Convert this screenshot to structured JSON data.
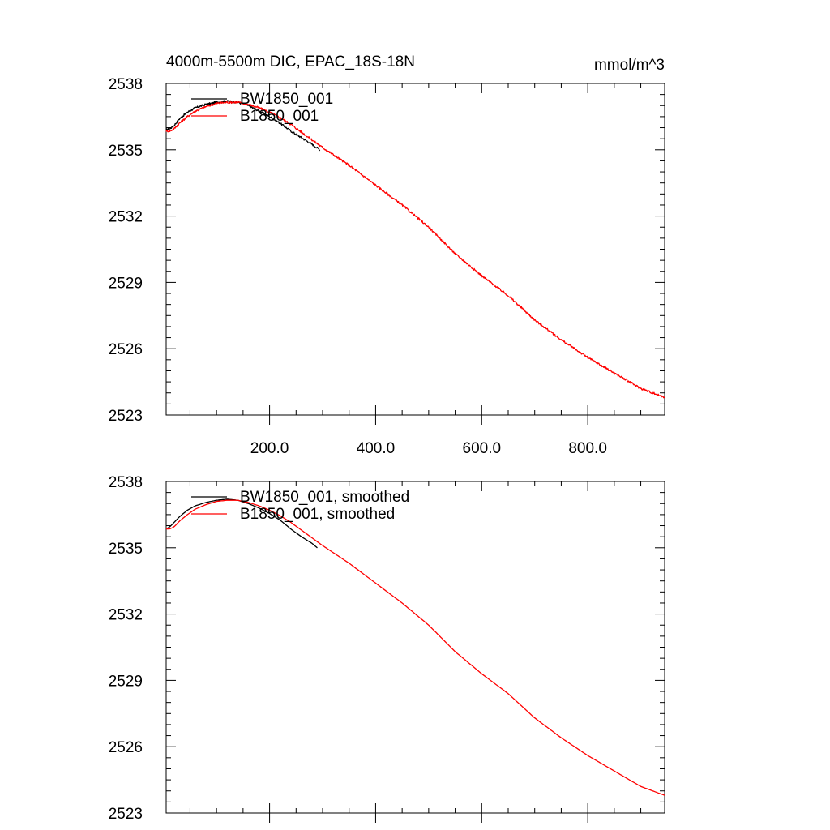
{
  "figure": {
    "title": "4000m-5500m DIC, EPAC_18S-18N",
    "units": "mmol/m^3"
  },
  "chart_data": [
    {
      "type": "line",
      "title": "4000m-5500m DIC, EPAC_18S-18N",
      "units_label": "mmol/m^3",
      "xlim": [
        5,
        945
      ],
      "ylim": [
        2523,
        2538
      ],
      "x_ticks": [
        200,
        400,
        600,
        800
      ],
      "x_tick_labels": [
        "200.0",
        "400.0",
        "600.0",
        "800.0"
      ],
      "y_ticks": [
        2523,
        2526,
        2529,
        2532,
        2535,
        2538
      ],
      "y_tick_labels": [
        "2523",
        "2526",
        "2529",
        "2532",
        "2535",
        "2538"
      ],
      "legend_position": "top-left",
      "noisy": true,
      "series": [
        {
          "name": "BW1850_001",
          "color": "#000000",
          "x": [
            5,
            12,
            20,
            30,
            45,
            60,
            80,
            100,
            120,
            140,
            160,
            180,
            200,
            220,
            240,
            260,
            280,
            295
          ],
          "y": [
            2535.9,
            2535.95,
            2536.1,
            2536.4,
            2536.7,
            2536.9,
            2537.05,
            2537.15,
            2537.2,
            2537.15,
            2537.0,
            2536.75,
            2536.5,
            2536.2,
            2535.85,
            2535.55,
            2535.25,
            2535.0
          ]
        },
        {
          "name": "B1850_001",
          "color": "#ff0000",
          "x": [
            5,
            12,
            20,
            30,
            45,
            60,
            80,
            100,
            120,
            140,
            160,
            180,
            200,
            220,
            240,
            260,
            280,
            300,
            350,
            400,
            450,
            500,
            550,
            600,
            650,
            700,
            750,
            800,
            850,
            900,
            945
          ],
          "y": [
            2535.85,
            2535.85,
            2535.95,
            2536.2,
            2536.5,
            2536.75,
            2536.95,
            2537.1,
            2537.15,
            2537.15,
            2537.05,
            2536.9,
            2536.7,
            2536.45,
            2536.15,
            2535.8,
            2535.45,
            2535.1,
            2534.3,
            2533.4,
            2532.5,
            2531.5,
            2530.3,
            2529.3,
            2528.4,
            2527.3,
            2526.4,
            2525.6,
            2524.9,
            2524.2,
            2523.8
          ]
        }
      ]
    },
    {
      "type": "line",
      "title": "",
      "units_label": "",
      "xlim": [
        5,
        945
      ],
      "ylim": [
        2523,
        2538
      ],
      "x_ticks": [
        200,
        400,
        600,
        800
      ],
      "x_tick_labels": [],
      "y_ticks": [
        2523,
        2526,
        2529,
        2532,
        2535,
        2538
      ],
      "y_tick_labels": [
        "2523",
        "2526",
        "2529",
        "2532",
        "2535",
        "2538"
      ],
      "legend_position": "top-left",
      "noisy": false,
      "series": [
        {
          "name": "BW1850_001, smoothed",
          "color": "#000000",
          "x": [
            5,
            12,
            20,
            30,
            45,
            60,
            80,
            100,
            120,
            140,
            160,
            180,
            200,
            220,
            240,
            260,
            280,
            290
          ],
          "y": [
            2535.85,
            2535.95,
            2536.15,
            2536.4,
            2536.7,
            2536.9,
            2537.05,
            2537.15,
            2537.2,
            2537.15,
            2537.0,
            2536.8,
            2536.55,
            2536.25,
            2535.85,
            2535.5,
            2535.2,
            2535.0
          ]
        },
        {
          "name": "B1850_001, smoothed",
          "color": "#ff0000",
          "x": [
            5,
            12,
            20,
            30,
            45,
            60,
            80,
            100,
            120,
            140,
            160,
            180,
            200,
            220,
            240,
            260,
            280,
            300,
            350,
            400,
            450,
            500,
            550,
            600,
            650,
            700,
            750,
            800,
            850,
            900,
            945
          ],
          "y": [
            2535.85,
            2535.85,
            2535.95,
            2536.2,
            2536.5,
            2536.75,
            2536.95,
            2537.1,
            2537.15,
            2537.15,
            2537.05,
            2536.9,
            2536.7,
            2536.45,
            2536.15,
            2535.8,
            2535.45,
            2535.1,
            2534.3,
            2533.4,
            2532.5,
            2531.5,
            2530.3,
            2529.3,
            2528.4,
            2527.3,
            2526.4,
            2525.6,
            2524.9,
            2524.2,
            2523.8
          ]
        }
      ]
    }
  ]
}
